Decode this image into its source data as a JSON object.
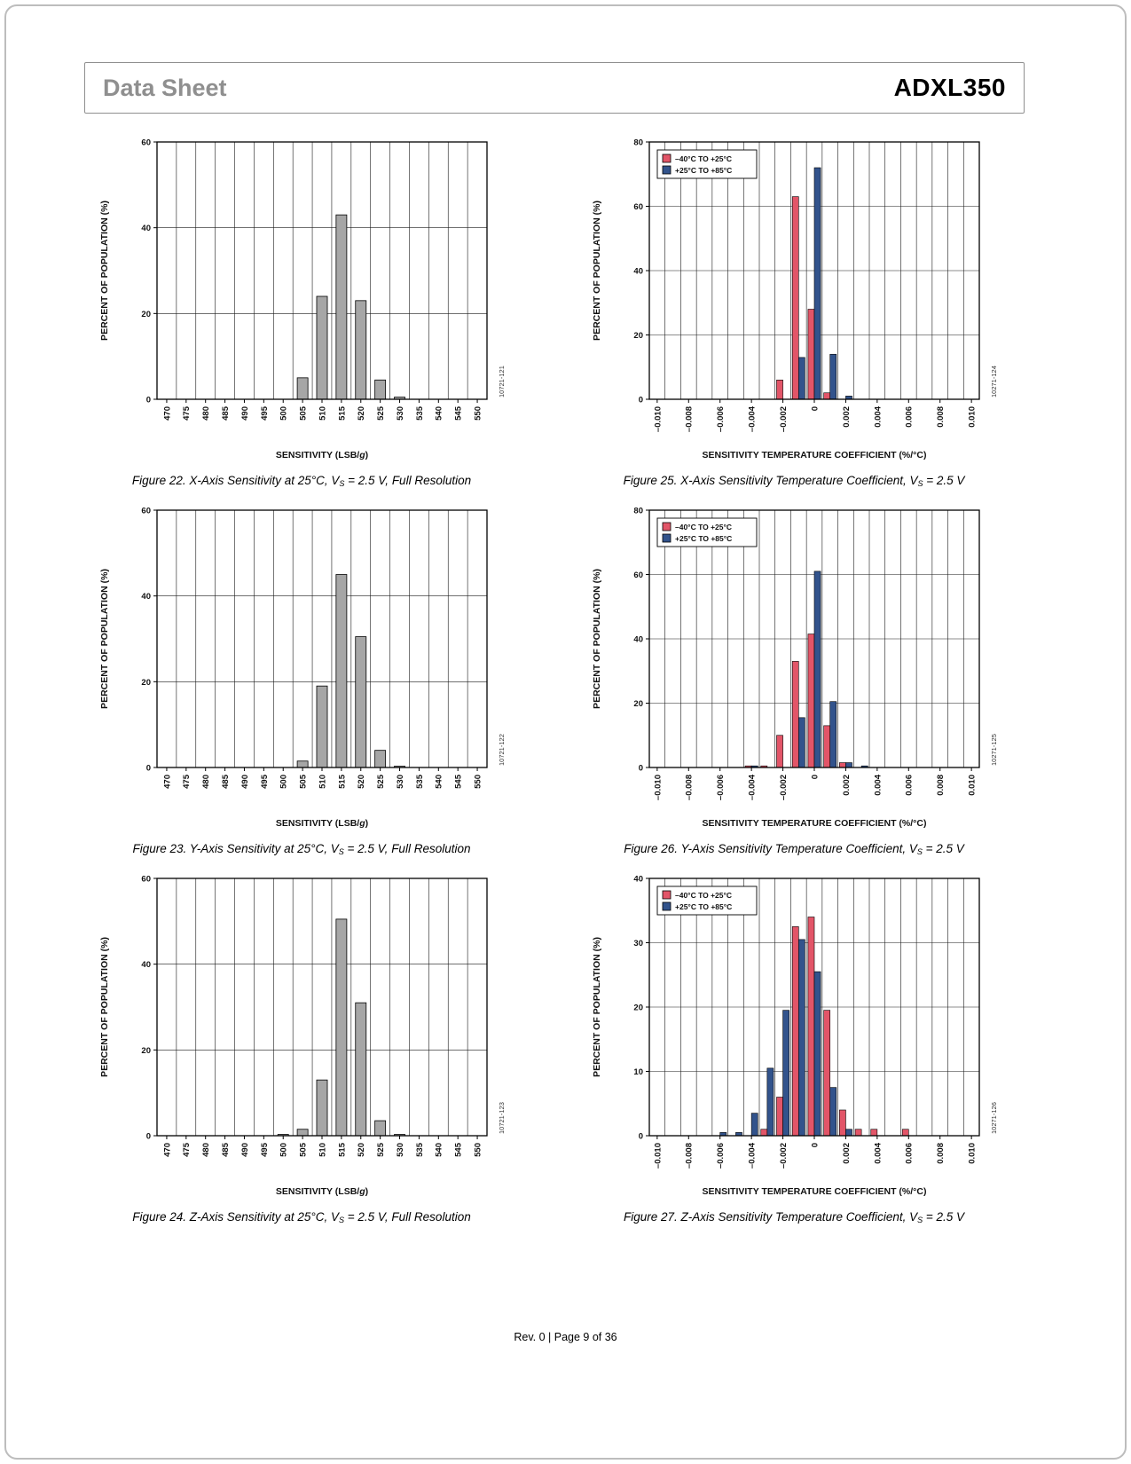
{
  "header": {
    "doc_type": "Data Sheet",
    "part_number": "ADXL350"
  },
  "footer": {
    "text": "Rev. 0 | Page 9 of 36"
  },
  "colors": {
    "bar_gray": "#a6a6a6",
    "series_red": "#e25568",
    "series_blue": "#32538c",
    "grid": "#1a1a1a"
  },
  "chart_data": [
    {
      "type": "bar",
      "code": "10721-121",
      "ylabel": "PERCENT OF POPULATION (%)",
      "xlabel_parts": [
        {
          "text": "SENSITIVITY (LSB/",
          "italic": false
        },
        {
          "text": "g",
          "italic": true
        },
        {
          "text": ")",
          "italic": false
        }
      ],
      "categories": [
        "470",
        "475",
        "480",
        "485",
        "490",
        "495",
        "500",
        "505",
        "510",
        "515",
        "520",
        "525",
        "530",
        "535",
        "540",
        "545",
        "550"
      ],
      "values": [
        0,
        0,
        0,
        0,
        0,
        0,
        0,
        5,
        24,
        43,
        23,
        4.5,
        0.5,
        0,
        0,
        0,
        0
      ],
      "ylim": [
        0,
        60
      ],
      "yticks": [
        0,
        20,
        40,
        60
      ],
      "label_every": 1,
      "caption": {
        "pre": "Figure 22. X-Axis Sensitivity at 25°C, V",
        "sub": "S",
        "post": " = 2.5 V, Full Resolution"
      }
    },
    {
      "type": "grouped-bar",
      "code": "10271-124",
      "ylabel": "PERCENT OF POPULATION (%)",
      "xlabel_parts": [
        {
          "text": "SENSITIVITY TEMPERATURE COEFFICIENT (%/°C)",
          "italic": false
        }
      ],
      "categories": [
        "–0.010",
        "–0.009",
        "–0.008",
        "–0.007",
        "–0.006",
        "–0.005",
        "–0.004",
        "–0.003",
        "–0.002",
        "–0.001",
        "0",
        "0.001",
        "0.002",
        "0.003",
        "0.004",
        "0.005",
        "0.006",
        "0.007",
        "0.008",
        "0.009",
        "0.010"
      ],
      "series": [
        {
          "name": "–40°C TO +25°C",
          "color": "series_red",
          "values": [
            0,
            0,
            0,
            0,
            0,
            0,
            0,
            0,
            6,
            63,
            28,
            2,
            0,
            0,
            0,
            0,
            0,
            0,
            0,
            0,
            0
          ]
        },
        {
          "name": "+25°C TO +85°C",
          "color": "series_blue",
          "values": [
            0,
            0,
            0,
            0,
            0,
            0,
            0,
            0,
            0,
            13,
            72,
            14,
            1,
            0,
            0,
            0,
            0,
            0,
            0,
            0,
            0
          ]
        }
      ],
      "ylim": [
        0,
        80
      ],
      "yticks": [
        0,
        20,
        40,
        60,
        80
      ],
      "label_every": 2,
      "caption": {
        "pre": "Figure 25. X-Axis Sensitivity Temperature Coefficient, V",
        "sub": "S",
        "post": " = 2.5 V"
      }
    },
    {
      "type": "bar",
      "code": "10721-122",
      "ylabel": "PERCENT OF POPULATION (%)",
      "xlabel_parts": [
        {
          "text": "SENSITIVITY (LSB/",
          "italic": false
        },
        {
          "text": "g",
          "italic": true
        },
        {
          "text": ")",
          "italic": false
        }
      ],
      "categories": [
        "470",
        "475",
        "480",
        "485",
        "490",
        "495",
        "500",
        "505",
        "510",
        "515",
        "520",
        "525",
        "530",
        "535",
        "540",
        "545",
        "550"
      ],
      "values": [
        0,
        0,
        0,
        0,
        0,
        0,
        0,
        1.5,
        19,
        45,
        30.5,
        4,
        0.3,
        0,
        0,
        0,
        0
      ],
      "ylim": [
        0,
        60
      ],
      "yticks": [
        0,
        20,
        40,
        60
      ],
      "label_every": 1,
      "caption": {
        "pre": "Figure 23. Y-Axis Sensitivity at 25°C, V",
        "sub": "S",
        "post": " = 2.5 V, Full Resolution"
      }
    },
    {
      "type": "grouped-bar",
      "code": "10271-125",
      "ylabel": "PERCENT OF POPULATION (%)",
      "xlabel_parts": [
        {
          "text": "SENSITIVITY TEMPERATURE COEFFICIENT (%/°C)",
          "italic": false
        }
      ],
      "categories": [
        "–0.010",
        "–0.009",
        "–0.008",
        "–0.007",
        "–0.006",
        "–0.005",
        "–0.004",
        "–0.003",
        "–0.002",
        "–0.001",
        "0",
        "0.001",
        "0.002",
        "0.003",
        "0.004",
        "0.005",
        "0.006",
        "0.007",
        "0.008",
        "0.009",
        "0.010"
      ],
      "series": [
        {
          "name": "–40°C TO +25°C",
          "color": "series_red",
          "values": [
            0,
            0,
            0,
            0,
            0,
            0,
            0.5,
            0.5,
            10,
            33,
            41.5,
            13,
            1.5,
            0,
            0,
            0,
            0,
            0,
            0,
            0,
            0
          ]
        },
        {
          "name": "+25°C TO +85°C",
          "color": "series_blue",
          "values": [
            0,
            0,
            0,
            0,
            0,
            0,
            0.5,
            0,
            0,
            15.5,
            61,
            20.5,
            1.5,
            0.5,
            0,
            0,
            0,
            0,
            0,
            0,
            0
          ]
        }
      ],
      "ylim": [
        0,
        80
      ],
      "yticks": [
        0,
        20,
        40,
        60,
        80
      ],
      "label_every": 2,
      "caption": {
        "pre": "Figure 26. Y-Axis Sensitivity Temperature Coefficient, V",
        "sub": "S",
        "post": " = 2.5 V"
      }
    },
    {
      "type": "bar",
      "code": "10721-123",
      "ylabel": "PERCENT OF POPULATION (%)",
      "xlabel_parts": [
        {
          "text": "SENSITIVITY (LSB/",
          "italic": false
        },
        {
          "text": "g",
          "italic": true
        },
        {
          "text": ")",
          "italic": false
        }
      ],
      "categories": [
        "470",
        "475",
        "480",
        "485",
        "490",
        "495",
        "500",
        "505",
        "510",
        "515",
        "520",
        "525",
        "530",
        "535",
        "540",
        "545",
        "550"
      ],
      "values": [
        0,
        0,
        0,
        0,
        0,
        0,
        0.3,
        1.5,
        13,
        50.5,
        31,
        3.5,
        0.3,
        0,
        0,
        0,
        0
      ],
      "ylim": [
        0,
        60
      ],
      "yticks": [
        0,
        20,
        40,
        60
      ],
      "label_every": 1,
      "caption": {
        "pre": "Figure 24. Z-Axis Sensitivity at 25°C, V",
        "sub": "S",
        "post": " = 2.5 V, Full Resolution"
      }
    },
    {
      "type": "grouped-bar",
      "code": "10271-126",
      "ylabel": "PERCENT OF POPULATION (%)",
      "xlabel_parts": [
        {
          "text": "SENSITIVITY TEMPERATURE COEFFICIENT (%/°C)",
          "italic": false
        }
      ],
      "categories": [
        "–0.010",
        "–0.009",
        "–0.008",
        "–0.007",
        "–0.006",
        "–0.005",
        "–0.004",
        "–0.003",
        "–0.002",
        "–0.001",
        "0",
        "0.001",
        "0.002",
        "0.003",
        "0.004",
        "0.005",
        "0.006",
        "0.007",
        "0.008",
        "0.009",
        "0.010"
      ],
      "series": [
        {
          "name": "–40°C TO +25°C",
          "color": "series_red",
          "values": [
            0,
            0,
            0,
            0,
            0,
            0,
            0,
            1,
            6,
            32.5,
            34,
            19.5,
            4,
            1,
            1,
            0,
            1,
            0,
            0,
            0,
            0
          ]
        },
        {
          "name": "+25°C TO +85°C",
          "color": "series_blue",
          "values": [
            0,
            0,
            0,
            0,
            0.5,
            0.5,
            3.5,
            10.5,
            19.5,
            30.5,
            25.5,
            7.5,
            1,
            0,
            0,
            0,
            0,
            0,
            0,
            0,
            0
          ]
        }
      ],
      "ylim": [
        0,
        40
      ],
      "yticks": [
        0,
        10,
        20,
        30,
        40
      ],
      "label_every": 2,
      "caption": {
        "pre": "Figure 27. Z-Axis Sensitivity Temperature Coefficient, V",
        "sub": "S",
        "post": " = 2.5 V"
      }
    }
  ]
}
